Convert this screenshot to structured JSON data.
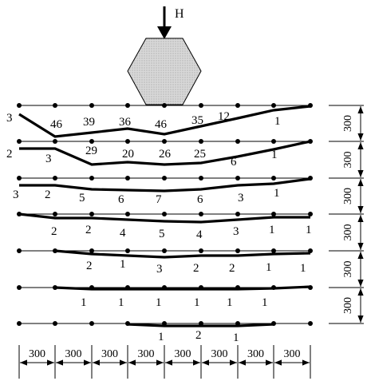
{
  "load": {
    "label": "H"
  },
  "dimensions": {
    "horizontal": [
      "300",
      "300",
      "300",
      "300",
      "300",
      "300",
      "300",
      "300"
    ],
    "vertical": [
      "300",
      "300",
      "300",
      "300",
      "300",
      "300"
    ]
  },
  "rows": [
    {
      "labels": [
        "3",
        "46",
        "39",
        "36",
        "46",
        "35",
        "12",
        "1"
      ]
    },
    {
      "labels": [
        "2",
        "3",
        "29",
        "20",
        "26",
        "25",
        "6",
        "1"
      ]
    },
    {
      "labels": [
        "3",
        "2",
        "5",
        "6",
        "7",
        "6",
        "3",
        "1"
      ]
    },
    {
      "labels": [
        "2",
        "2",
        "4",
        "5",
        "4",
        "3",
        "1",
        "1"
      ]
    },
    {
      "labels": [
        "2",
        "1",
        "3",
        "2",
        "2",
        "1",
        "1"
      ]
    },
    {
      "labels": [
        "1",
        "1",
        "1",
        "1",
        "1",
        "1"
      ]
    },
    {
      "labels": [
        "1",
        "2",
        "1"
      ]
    }
  ]
}
